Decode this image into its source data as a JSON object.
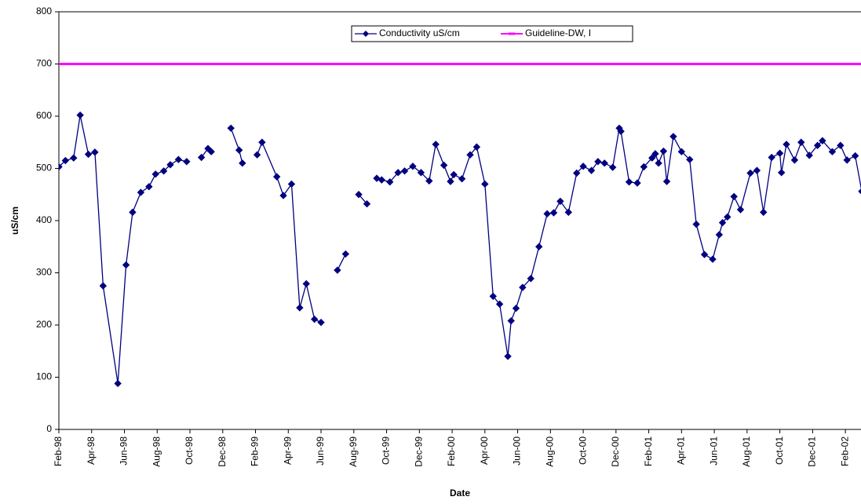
{
  "chart_data": {
    "type": "line",
    "x_label": "Date",
    "y_label": "uS/cm",
    "xlim": [
      0,
      49
    ],
    "ylim": [
      0,
      800
    ],
    "yticks": [
      0,
      100,
      200,
      300,
      400,
      500,
      600,
      700,
      800
    ],
    "xticks": [
      {
        "value": 0,
        "label": "Feb-98"
      },
      {
        "value": 2,
        "label": "Apr-98"
      },
      {
        "value": 4,
        "label": "Jun-98"
      },
      {
        "value": 6,
        "label": "Aug-98"
      },
      {
        "value": 8,
        "label": "Oct-98"
      },
      {
        "value": 10,
        "label": "Dec-98"
      },
      {
        "value": 12,
        "label": "Feb-99"
      },
      {
        "value": 14,
        "label": "Apr-99"
      },
      {
        "value": 16,
        "label": "Jun-99"
      },
      {
        "value": 18,
        "label": "Aug-99"
      },
      {
        "value": 20,
        "label": "Oct-99"
      },
      {
        "value": 22,
        "label": "Dec-99"
      },
      {
        "value": 24,
        "label": "Feb-00"
      },
      {
        "value": 26,
        "label": "Apr-00"
      },
      {
        "value": 28,
        "label": "Jun-00"
      },
      {
        "value": 30,
        "label": "Aug-00"
      },
      {
        "value": 32,
        "label": "Oct-00"
      },
      {
        "value": 34,
        "label": "Dec-00"
      },
      {
        "value": 36,
        "label": "Feb-01"
      },
      {
        "value": 38,
        "label": "Apr-01"
      },
      {
        "value": 40,
        "label": "Jun-01"
      },
      {
        "value": 42,
        "label": "Aug-01"
      },
      {
        "value": 44,
        "label": "Oct-01"
      },
      {
        "value": 46,
        "label": "Dec-01"
      },
      {
        "value": 48,
        "label": "Feb-02"
      }
    ],
    "grid": false,
    "legend": "top",
    "series": [
      {
        "name": "Conductivity uS/cm",
        "color": "#000080",
        "marker": "diamond",
        "x": [
          0,
          0.4,
          0.9,
          1.3,
          1.8,
          2.2,
          2.7,
          3.6,
          4.1,
          4.5,
          5.0,
          5.5,
          5.9,
          6.4,
          6.8,
          7.3,
          7.8,
          8.2,
          8.7,
          9.1,
          9.3,
          9.9,
          10.5,
          11.0,
          11.2,
          11.6,
          12.1,
          12.4,
          13.3,
          13.7,
          14.2,
          14.7,
          15.1,
          15.6,
          16.0,
          16.5,
          17.0,
          17.5,
          17.9,
          18.3,
          18.8,
          19.1,
          19.4,
          19.7,
          20.2,
          20.7,
          21.1,
          21.6,
          22.1,
          22.6,
          23.0,
          23.5,
          23.9,
          24.1,
          24.6,
          25.1,
          25.5,
          26.0,
          26.5,
          26.9,
          27.4,
          27.6,
          27.9,
          28.3,
          28.8,
          29.3,
          29.8,
          30.2,
          30.6,
          31.1,
          31.6,
          32.0,
          32.5,
          32.9,
          33.3,
          33.8,
          34.2,
          34.3,
          34.8,
          35.3,
          35.7,
          36.2,
          36.4,
          36.6,
          36.9,
          37.1,
          37.5,
          38.0,
          38.5,
          38.9,
          39.4,
          39.9,
          40.3,
          40.5,
          40.8,
          41.2,
          41.6,
          42.2,
          42.6,
          43.0,
          43.5,
          44.0,
          44.1,
          44.4,
          44.9,
          45.3,
          45.8,
          46.3,
          46.6,
          47.2,
          47.7,
          48.1,
          48.6,
          49.0
        ],
        "values": [
          503,
          515,
          520,
          602,
          527,
          531,
          275,
          88,
          315,
          416,
          454,
          465,
          489,
          495,
          507,
          517,
          513,
          null,
          521,
          538,
          532,
          null,
          577,
          535,
          510,
          null,
          526,
          550,
          484,
          448,
          470,
          233,
          279,
          211,
          205,
          null,
          305,
          336,
          null,
          450,
          432,
          null,
          481,
          478,
          474,
          492,
          495,
          504,
          492,
          476,
          546,
          506,
          475,
          488,
          480,
          526,
          541,
          470,
          255,
          240,
          140,
          208,
          232,
          272,
          289,
          350,
          413,
          415,
          437,
          416,
          491,
          504,
          496,
          513,
          510,
          502,
          577,
          571,
          474,
          472,
          503,
          520,
          528,
          510,
          533,
          475,
          561,
          532,
          517,
          393,
          335,
          326,
          373,
          396,
          407,
          446,
          421,
          491,
          496,
          416,
          521,
          529,
          492,
          546,
          516,
          550,
          525,
          544,
          553,
          532,
          544,
          516,
          524,
          456
        ]
      },
      {
        "name": "Guideline-DW, I",
        "color": "#ff00ff",
        "marker": "dash",
        "x": [
          0,
          49
        ],
        "values": [
          700,
          700
        ]
      }
    ]
  }
}
